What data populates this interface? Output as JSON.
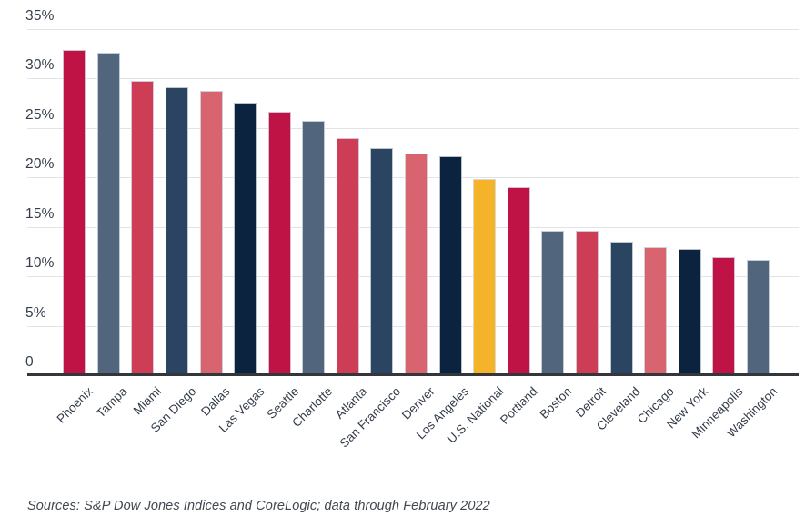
{
  "source_note": "Sources: S&P Dow Jones Indices and CoreLogic; data through February 2022",
  "palette": {
    "crimson": "#bf1245",
    "slate": "#51657d",
    "red": "#cd3d56",
    "navy": "#2a4462",
    "rose": "#d86470",
    "darknavy": "#0c2340",
    "gold": "#f5b32a",
    "baseline": "#33363b",
    "gridline": "#e3e3e6",
    "axis_text": "#343d4a"
  },
  "chart_data": {
    "type": "bar",
    "title": "",
    "xlabel": "",
    "ylabel": "",
    "ylim": [
      0,
      35
    ],
    "grid": "horizontal",
    "legend": "none",
    "yticks": [
      35,
      30,
      25,
      20,
      15,
      10,
      5,
      0
    ],
    "ytick_labels": [
      "35%",
      "30%",
      "25%",
      "20%",
      "15%",
      "10%",
      "5%",
      "0"
    ],
    "categories": [
      "Phoenix",
      "Tampa",
      "Miami",
      "San Diego",
      "Dallas",
      "Las Vegas",
      "Seattle",
      "Charlotte",
      "Atlanta",
      "San Francisco",
      "Denver",
      "Los Angeles",
      "U.S. National",
      "Portland",
      "Boston",
      "Detroit",
      "Cleveland",
      "Chicago",
      "New York",
      "Minneapolis",
      "Washington"
    ],
    "values": [
      32.9,
      32.6,
      29.8,
      29.1,
      28.8,
      27.6,
      26.6,
      25.7,
      24.0,
      23.0,
      22.4,
      22.1,
      19.8,
      19.0,
      14.6,
      14.6,
      13.5,
      13.0,
      12.8,
      11.9,
      11.7
    ],
    "bar_color_keys": [
      "crimson",
      "slate",
      "red",
      "navy",
      "rose",
      "darknavy",
      "crimson",
      "slate",
      "red",
      "navy",
      "rose",
      "darknavy",
      "gold",
      "crimson",
      "slate",
      "red",
      "navy",
      "rose",
      "darknavy",
      "crimson",
      "slate"
    ],
    "highlighted_category": "U.S. National"
  }
}
